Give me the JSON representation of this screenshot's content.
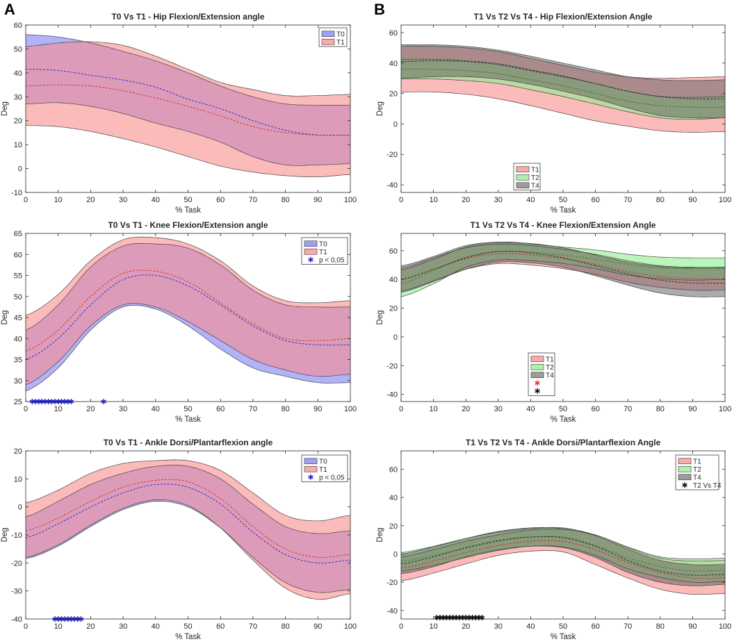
{
  "panel_letters": {
    "A": "A",
    "B": "B"
  },
  "colors": {
    "T0": "#7f7ff5",
    "T1": "#f98e8e",
    "T2": "#90ee90",
    "T4": "#5a5a5a",
    "T0_line": "#2222cc",
    "T1_line": "#d42a2a",
    "T4_line": "#222222",
    "star_blue": "#1a1acc",
    "star_black": "#000000",
    "star_red": "#ff2020"
  },
  "chart_data": [
    {
      "id": "a1",
      "type": "area",
      "title": "T0 Vs T1 - Hip Flexion/Extension angle",
      "xlabel": "% Task",
      "ylabel": "Deg",
      "xlim": [
        0,
        100
      ],
      "ylim": [
        -10,
        60
      ],
      "xticks": [
        0,
        10,
        20,
        30,
        40,
        50,
        60,
        70,
        80,
        90,
        100
      ],
      "yticks": [
        -10,
        0,
        10,
        20,
        30,
        40,
        50,
        60
      ],
      "x": [
        0,
        10,
        20,
        30,
        40,
        50,
        60,
        70,
        80,
        90,
        100
      ],
      "series": [
        {
          "name": "T0",
          "color": "#7f7ff5",
          "line": "#2222cc",
          "mean": [
            41.5,
            41,
            39,
            37,
            34,
            29,
            25,
            20,
            16,
            14,
            14
          ],
          "upper": [
            56,
            55,
            52.5,
            49,
            45,
            40,
            34.5,
            30,
            27,
            26.5,
            26.5
          ],
          "lower": [
            27,
            27.5,
            26,
            23,
            19,
            15.5,
            11,
            5,
            1.5,
            1.5,
            2
          ]
        },
        {
          "name": "T1",
          "color": "#f98e8e",
          "line": "#d42a2a",
          "mean": [
            34.5,
            35,
            34.5,
            32.5,
            29.5,
            26,
            22,
            17.5,
            15,
            14,
            14
          ],
          "upper": [
            51,
            52.5,
            53,
            51.5,
            47,
            41.5,
            36,
            33,
            30.5,
            30.5,
            31
          ],
          "lower": [
            18,
            17.5,
            15.5,
            12.5,
            9,
            5,
            1,
            -1.5,
            -3,
            -3.5,
            -2.5
          ]
        }
      ],
      "legend": [
        "T0",
        "T1"
      ],
      "markers": []
    },
    {
      "id": "a2",
      "type": "area",
      "title": "T0 Vs T1 - Knee Flexion/Extension angle",
      "xlabel": "% Task",
      "ylabel": "Deg",
      "xlim": [
        0,
        100
      ],
      "ylim": [
        25,
        65
      ],
      "xticks": [
        0,
        10,
        20,
        30,
        40,
        50,
        60,
        70,
        80,
        90,
        100
      ],
      "yticks": [
        25,
        30,
        35,
        40,
        45,
        50,
        55,
        60,
        65
      ],
      "x": [
        0,
        10,
        20,
        30,
        40,
        50,
        60,
        70,
        80,
        90,
        100
      ],
      "series": [
        {
          "name": "T0",
          "color": "#7f7ff5",
          "line": "#2222cc",
          "mean": [
            35,
            40,
            48,
            54,
            55,
            52.5,
            48,
            43,
            39.5,
            38.5,
            38.5
          ],
          "upper": [
            42,
            48,
            57,
            62,
            62.5,
            61.5,
            57.5,
            51.5,
            48,
            47.5,
            47.5
          ],
          "lower": [
            27.5,
            33,
            42,
            47.5,
            47,
            43,
            37.5,
            33,
            31,
            29.5,
            29.5
          ]
        },
        {
          "name": "T1",
          "color": "#f98e8e",
          "line": "#d42a2a",
          "mean": [
            37,
            42,
            50,
            55.5,
            56,
            53.5,
            48.5,
            43.5,
            40,
            39.5,
            40
          ],
          "upper": [
            45.5,
            50.5,
            58.5,
            63.5,
            64,
            62.5,
            58.5,
            52.5,
            49,
            48.5,
            49
          ],
          "lower": [
            29,
            34.5,
            43,
            48,
            47.5,
            44,
            39.5,
            35,
            32.5,
            31,
            31.5
          ]
        }
      ],
      "legend": [
        "T0",
        "T1",
        "p < 0,05"
      ],
      "markers": [
        {
          "x": [
            2,
            3,
            4,
            5,
            6,
            7,
            8,
            9,
            10,
            11,
            12,
            13,
            14,
            24
          ],
          "y": 25,
          "color": "#1a1acc",
          "label": "p < 0,05"
        }
      ]
    },
    {
      "id": "a3",
      "type": "area",
      "title": "T0 Vs T1 - Ankle Dorsi/Plantarflexion angle",
      "xlabel": "% Task",
      "ylabel": "Deg",
      "xlim": [
        0,
        100
      ],
      "ylim": [
        -40,
        20
      ],
      "xticks": [
        0,
        10,
        20,
        30,
        40,
        50,
        60,
        70,
        80,
        90,
        100
      ],
      "yticks": [
        -40,
        -30,
        -20,
        -10,
        0,
        10,
        20
      ],
      "x": [
        0,
        10,
        20,
        30,
        40,
        50,
        60,
        70,
        80,
        90,
        100
      ],
      "series": [
        {
          "name": "T0",
          "color": "#7f7ff5",
          "line": "#2222cc",
          "mean": [
            -11,
            -6,
            0,
            5,
            8,
            7,
            1,
            -9,
            -17,
            -20,
            -19
          ],
          "upper": [
            -3.5,
            2,
            8,
            12,
            14.5,
            14.5,
            10,
            1,
            -7,
            -9.5,
            -8.5
          ],
          "lower": [
            -18.5,
            -14,
            -7,
            -1,
            2,
            0,
            -7.5,
            -18,
            -27,
            -30.5,
            -29.5
          ]
        },
        {
          "name": "T1",
          "color": "#f98e8e",
          "line": "#d42a2a",
          "mean": [
            -8.5,
            -4,
            2,
            7,
            9.5,
            9,
            3,
            -7,
            -15,
            -18,
            -17
          ],
          "upper": [
            1.5,
            6,
            12,
            15.5,
            16.5,
            16.5,
            13,
            5,
            -3,
            -5,
            -3
          ],
          "lower": [
            -18,
            -13.5,
            -6.5,
            -0.5,
            2.5,
            0.5,
            -7.5,
            -19,
            -29,
            -33,
            -31
          ]
        }
      ],
      "legend": [
        "T0",
        "T1",
        "p < 0,05"
      ],
      "markers": [
        {
          "x": [
            9,
            10,
            11,
            12,
            13,
            14,
            15,
            16,
            17
          ],
          "y": -40,
          "color": "#1a1acc",
          "label": "p < 0,05"
        }
      ]
    },
    {
      "id": "b1",
      "type": "area",
      "title": "T1 Vs T2 Vs T4 - Hip Flexion/Extension Angle",
      "xlabel": "% Task",
      "ylabel": "Deg",
      "xlim": [
        0,
        100
      ],
      "ylim": [
        -45,
        65
      ],
      "xticks": [
        0,
        10,
        20,
        30,
        40,
        50,
        60,
        70,
        80,
        90,
        100
      ],
      "yticks": [
        -40,
        -20,
        0,
        20,
        40,
        60
      ],
      "x": [
        0,
        10,
        20,
        30,
        40,
        50,
        60,
        70,
        80,
        90,
        100
      ],
      "series": [
        {
          "name": "T1",
          "color": "#f98e8e",
          "line": "#d42a2a",
          "mean": [
            36,
            36,
            35,
            33,
            29,
            25,
            20,
            15,
            12,
            11,
            11
          ],
          "upper": [
            51,
            51,
            50,
            47.5,
            43,
            38.5,
            34,
            31,
            30,
            30.5,
            31
          ],
          "lower": [
            21,
            21,
            19.5,
            16.5,
            12,
            7,
            2,
            -1.5,
            -4.5,
            -5.5,
            -5
          ]
        },
        {
          "name": "T2",
          "color": "#90ee90",
          "line": "#2a8a2a",
          "mean": [
            36,
            36,
            35,
            33,
            29,
            25,
            20,
            15,
            12,
            11,
            11
          ],
          "upper": [
            42.5,
            42.5,
            41.5,
            39.5,
            35.5,
            31.5,
            26.5,
            21.5,
            18,
            17.5,
            18
          ],
          "lower": [
            29.5,
            29.5,
            28.5,
            26.5,
            22.5,
            18,
            13,
            8,
            4,
            3,
            4
          ]
        },
        {
          "name": "T4",
          "color": "#5a5a5a",
          "line": "#222222",
          "mean": [
            41,
            41.5,
            41,
            39,
            35,
            31,
            26.5,
            21.5,
            18,
            16.5,
            16.5
          ],
          "upper": [
            52,
            52,
            51,
            48.5,
            44.5,
            40,
            35.5,
            31,
            29,
            28.5,
            29
          ],
          "lower": [
            30,
            31,
            31,
            29.5,
            26,
            21.5,
            16.5,
            10.5,
            5.5,
            4,
            4
          ]
        }
      ],
      "legend": [
        "T1",
        "T2",
        "T4"
      ],
      "markers": []
    },
    {
      "id": "b2",
      "type": "area",
      "title": "T1 Vs T2 Vs T4 - Knee Flexion/Extension Angle",
      "xlabel": "% Task",
      "ylabel": "Deg",
      "xlim": [
        0,
        100
      ],
      "ylim": [
        -45,
        72
      ],
      "xticks": [
        0,
        10,
        20,
        30,
        40,
        50,
        60,
        70,
        80,
        90,
        100
      ],
      "yticks": [
        -40,
        -20,
        0,
        20,
        40,
        60
      ],
      "x": [
        0,
        10,
        20,
        30,
        40,
        50,
        60,
        70,
        80,
        90,
        100
      ],
      "series": [
        {
          "name": "T1",
          "color": "#f98e8e",
          "line": "#d42a2a",
          "mean": [
            40,
            47,
            54.5,
            58,
            57,
            54.5,
            50.5,
            45.5,
            42,
            40.5,
            40.5
          ],
          "upper": [
            48,
            55,
            62,
            64.5,
            63.5,
            61,
            57.5,
            53,
            49.5,
            48.5,
            48.5
          ],
          "lower": [
            32,
            39,
            47,
            51,
            50,
            47.5,
            43.5,
            38,
            34.5,
            32.5,
            32.5
          ]
        },
        {
          "name": "T2",
          "color": "#90ee90",
          "line": "#2a8a2a",
          "mean": [
            37,
            46,
            55.5,
            59.5,
            59,
            57,
            54,
            50.5,
            48,
            47.5,
            47.5
          ],
          "upper": [
            46.5,
            54,
            62.5,
            65.5,
            64.5,
            62.5,
            60.5,
            57.5,
            55.5,
            55,
            55
          ],
          "lower": [
            28,
            37,
            48.5,
            53.5,
            53,
            51,
            47.5,
            43,
            40.5,
            39.5,
            40
          ]
        },
        {
          "name": "T4",
          "color": "#5a5a5a",
          "line": "#222222",
          "mean": [
            40,
            47,
            55,
            59.5,
            58.5,
            55,
            49.5,
            44,
            39.5,
            37.5,
            37.5
          ],
          "upper": [
            49.5,
            56,
            63.5,
            66,
            65,
            62,
            57,
            52,
            49,
            48,
            48
          ],
          "lower": [
            31,
            38.5,
            47,
            52,
            51.5,
            48.5,
            42.5,
            36,
            30.5,
            28,
            28
          ]
        }
      ],
      "legend": [
        "T1",
        "T2",
        "T4",
        "",
        ""
      ],
      "markers": []
    },
    {
      "id": "b3",
      "type": "area",
      "title": "T1 Vs T2 Vs T4 - Ankle Dorsi/Plantarflexion Angle",
      "xlabel": "% Task",
      "ylabel": "Deg",
      "xlim": [
        0,
        100
      ],
      "ylim": [
        -46,
        73
      ],
      "xticks": [
        0,
        10,
        20,
        30,
        40,
        50,
        60,
        70,
        80,
        90,
        100
      ],
      "yticks": [
        -40,
        -20,
        0,
        20,
        40,
        60
      ],
      "x": [
        0,
        10,
        20,
        30,
        40,
        50,
        60,
        70,
        80,
        90,
        100
      ],
      "series": [
        {
          "name": "T1",
          "color": "#f98e8e",
          "line": "#d42a2a",
          "mean": [
            -10,
            -5,
            1,
            6,
            9,
            9,
            3,
            -6,
            -13,
            -17,
            -17
          ],
          "upper": [
            -2,
            3,
            9,
            13.5,
            17,
            17.5,
            13.5,
            4.5,
            -3,
            -5,
            -4.5
          ],
          "lower": [
            -19,
            -13.5,
            -7,
            -1,
            2,
            1.5,
            -7.5,
            -17,
            -25,
            -28.5,
            -28
          ]
        },
        {
          "name": "T2",
          "color": "#90ee90",
          "line": "#2a8a2a",
          "mean": [
            -5,
            -1,
            4,
            9,
            12,
            12,
            6,
            -2.5,
            -9,
            -12,
            -11.5
          ],
          "upper": [
            1,
            5.5,
            11,
            15.5,
            18,
            18.5,
            13.5,
            5,
            -2,
            -3.5,
            -3
          ],
          "lower": [
            -12,
            -8,
            -2.5,
            2.5,
            5.5,
            5,
            -1,
            -10.5,
            -16.5,
            -20,
            -19.5
          ]
        },
        {
          "name": "T4",
          "color": "#5a5a5a",
          "line": "#222222",
          "mean": [
            -7,
            -2,
            4.5,
            9.5,
            12,
            11.5,
            5.5,
            -4.5,
            -12,
            -15,
            -14.5
          ],
          "upper": [
            0,
            5,
            11,
            16,
            18.5,
            18,
            13,
            3.5,
            -4.5,
            -7.5,
            -7.5
          ],
          "lower": [
            -14,
            -9,
            -2,
            3,
            5.5,
            4.5,
            -2.5,
            -13,
            -20,
            -22.5,
            -21.5
          ]
        }
      ],
      "legend": [
        "T1",
        "T2",
        "T4",
        "T2 Vs T4"
      ],
      "markers": [
        {
          "x": [
            11,
            12,
            13,
            14,
            15,
            16,
            17,
            18,
            19,
            20,
            21,
            22,
            23,
            24,
            25
          ],
          "y": -45,
          "color": "#000000",
          "label": "T2 Vs T4"
        }
      ]
    }
  ]
}
